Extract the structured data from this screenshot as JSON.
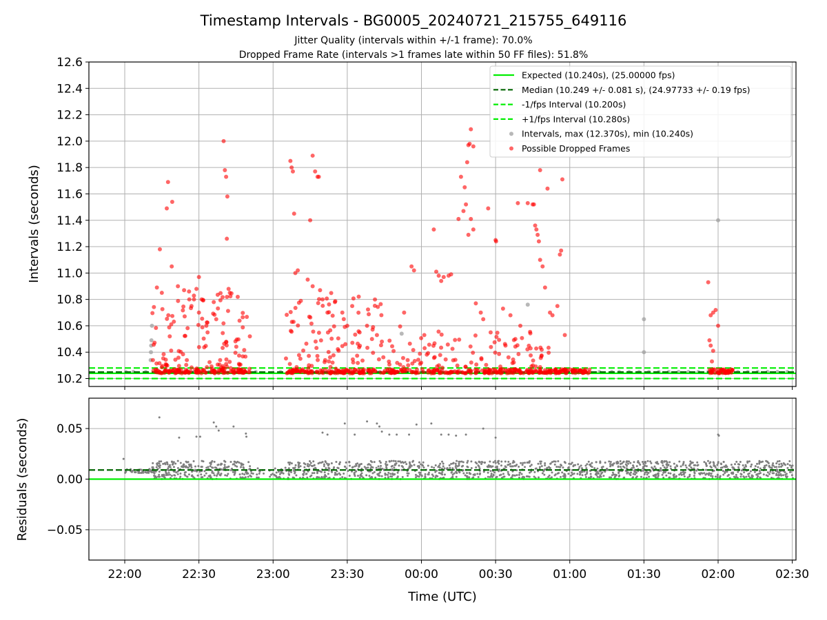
{
  "title": "Timestamp Intervals - BG0005_20240721_215755_649116",
  "subtitle_1": "Jitter Quality (intervals within +/-1 frame): 70.0%",
  "subtitle_2": "Dropped Frame Rate (intervals >1 frames late within 50 FF files): 51.8%",
  "colors": {
    "expected": "#00ee00",
    "median": "#006400",
    "bounds": "#00ee00",
    "normal_points": "#a0a0a0",
    "dropped_points": "#ff0000",
    "residual_points": "#7f7f7f",
    "grid": "#b0b0b0"
  },
  "chart_data": [
    {
      "type": "scatter",
      "id": "intervals",
      "ylabel": "Intervals (seconds)",
      "xlabel": "",
      "x_unit": "minutes since 22:00 UTC",
      "xlim": [
        -14.5,
        271.5
      ],
      "ylim": [
        10.14,
        12.6
      ],
      "y_ticks": [
        "10.2",
        "10.4",
        "10.6",
        "10.8",
        "11.0",
        "11.2",
        "11.4",
        "11.6",
        "11.8",
        "12.0",
        "12.2",
        "12.4",
        "12.6"
      ],
      "grid": "horizontal",
      "legend_position": "top-right",
      "legend": [
        {
          "label": "Expected (10.240s), (25.00000 fps)",
          "kind": "solid-line",
          "color": "#00ee00"
        },
        {
          "label": "Median (10.249 +/- 0.081 s), (24.97733 +/- 0.19 fps)",
          "kind": "dashed-line",
          "color": "#006400"
        },
        {
          "label": "-1/fps Interval (10.200s)",
          "kind": "dashed-line",
          "color": "#00ee00"
        },
        {
          "label": "+1/fps Interval (10.280s)",
          "kind": "dashed-line",
          "color": "#00ee00"
        },
        {
          "label": "Intervals, max (12.370s), min (10.240s)",
          "kind": "dot",
          "color": "#a0a0a0"
        },
        {
          "label": "Possible Dropped Frames",
          "kind": "dot",
          "color": "#ff0000"
        }
      ],
      "reference_lines": {
        "expected": 10.24,
        "median": 10.249,
        "lower": 10.2,
        "upper": 10.28
      },
      "normal_points": [
        [
          0.5,
          10.25
        ],
        [
          3.5,
          10.25
        ],
        [
          8.5,
          10.25
        ],
        [
          10.5,
          10.34
        ],
        [
          10.6,
          10.4
        ],
        [
          10.7,
          10.45
        ],
        [
          10.8,
          10.49
        ],
        [
          11,
          10.6
        ],
        [
          17,
          10.25
        ],
        [
          22,
          10.25
        ],
        [
          28,
          10.25
        ],
        [
          34,
          10.25
        ],
        [
          40,
          10.25
        ],
        [
          47,
          10.25
        ],
        [
          53,
          10.25
        ],
        [
          63,
          10.25
        ],
        [
          70,
          10.25
        ],
        [
          75,
          10.25
        ],
        [
          80,
          10.25
        ],
        [
          85,
          10.25
        ],
        [
          90,
          10.25
        ],
        [
          95,
          10.25
        ],
        [
          100,
          10.25
        ],
        [
          103,
          10.25
        ],
        [
          107,
          10.25
        ],
        [
          110,
          10.25
        ],
        [
          112,
          10.54
        ],
        [
          120,
          10.25
        ],
        [
          128,
          10.25
        ],
        [
          133,
          10.25
        ],
        [
          140,
          10.25
        ],
        [
          148,
          10.25
        ],
        [
          156,
          10.25
        ],
        [
          163,
          10.25
        ],
        [
          170,
          10.25
        ],
        [
          178,
          10.25
        ],
        [
          186,
          10.25
        ],
        [
          192,
          10.25
        ],
        [
          197,
          10.25
        ],
        [
          200,
          10.25
        ],
        [
          204,
          10.25
        ],
        [
          208,
          10.25
        ],
        [
          212,
          10.25
        ],
        [
          216,
          10.25
        ],
        [
          220,
          10.25
        ],
        [
          224,
          10.25
        ],
        [
          228,
          10.25
        ],
        [
          232,
          10.25
        ],
        [
          236,
          10.25
        ],
        [
          240,
          10.25
        ],
        [
          244,
          10.25
        ],
        [
          248,
          10.25
        ],
        [
          252,
          10.25
        ],
        [
          256,
          10.25
        ],
        [
          260,
          10.25
        ],
        [
          264,
          10.25
        ],
        [
          268,
          10.25
        ],
        [
          163,
          10.76
        ],
        [
          210,
          10.65
        ],
        [
          210,
          10.4
        ],
        [
          240,
          11.4
        ]
      ],
      "dropped_points": [
        [
          13,
          10.89
        ],
        [
          14.2,
          11.18
        ],
        [
          15,
          10.85
        ],
        [
          17,
          11.49
        ],
        [
          17.5,
          11.69
        ],
        [
          19.2,
          11.54
        ],
        [
          19,
          11.05
        ],
        [
          21.5,
          10.9
        ],
        [
          24,
          10.87
        ],
        [
          26,
          10.86
        ],
        [
          28,
          10.8
        ],
        [
          29,
          10.88
        ],
        [
          30,
          10.97
        ],
        [
          33,
          10.6
        ],
        [
          36,
          10.78
        ],
        [
          40,
          12.0
        ],
        [
          40.5,
          11.78
        ],
        [
          41,
          11.73
        ],
        [
          41.5,
          11.58
        ],
        [
          41.3,
          11.26
        ],
        [
          42,
          10.88
        ],
        [
          42.5,
          10.85
        ],
        [
          30,
          10.7
        ],
        [
          27,
          10.75
        ],
        [
          37,
          10.65
        ],
        [
          33.5,
          10.55
        ],
        [
          67,
          11.85
        ],
        [
          67.5,
          11.8
        ],
        [
          68,
          11.77
        ],
        [
          68.5,
          11.45
        ],
        [
          70,
          11.02
        ],
        [
          75,
          11.4
        ],
        [
          76,
          11.89
        ],
        [
          77,
          11.77
        ],
        [
          78,
          11.73
        ],
        [
          78.5,
          11.73
        ],
        [
          69,
          11.0
        ],
        [
          74,
          10.95
        ],
        [
          76,
          10.9
        ],
        [
          79,
          10.87
        ],
        [
          80,
          10.8
        ],
        [
          82,
          10.7
        ],
        [
          85,
          10.78
        ],
        [
          88,
          10.7
        ],
        [
          90,
          10.6
        ],
        [
          92,
          10.75
        ],
        [
          95,
          10.55
        ],
        [
          98,
          10.6
        ],
        [
          100,
          10.5
        ],
        [
          104,
          10.48
        ],
        [
          102,
          10.53
        ],
        [
          116,
          11.05
        ],
        [
          117,
          11.02
        ],
        [
          113,
          10.7
        ],
        [
          125,
          11.33
        ],
        [
          126,
          11.01
        ],
        [
          127,
          10.98
        ],
        [
          128,
          10.94
        ],
        [
          129,
          10.97
        ],
        [
          131,
          10.98
        ],
        [
          132,
          10.99
        ],
        [
          135,
          11.41
        ],
        [
          136,
          11.73
        ],
        [
          137,
          11.47
        ],
        [
          137.5,
          11.65
        ],
        [
          138,
          11.52
        ],
        [
          138.5,
          11.84
        ],
        [
          139,
          11.97
        ],
        [
          139.5,
          11.98
        ],
        [
          140,
          12.09
        ],
        [
          141,
          11.96
        ],
        [
          140,
          11.41
        ],
        [
          141,
          11.33
        ],
        [
          139,
          11.29
        ],
        [
          142,
          10.77
        ],
        [
          144,
          10.7
        ],
        [
          147,
          11.49
        ],
        [
          150,
          11.25
        ],
        [
          150.2,
          11.24
        ],
        [
          153,
          10.73
        ],
        [
          156,
          10.68
        ],
        [
          159,
          11.53
        ],
        [
          163,
          11.53
        ],
        [
          165,
          11.52
        ],
        [
          165.5,
          11.52
        ],
        [
          166,
          11.36
        ],
        [
          166.5,
          11.33
        ],
        [
          167,
          11.29
        ],
        [
          167.5,
          11.24
        ],
        [
          168,
          11.78
        ],
        [
          169,
          11.05
        ],
        [
          168,
          11.1
        ],
        [
          170,
          10.89
        ],
        [
          171,
          11.64
        ],
        [
          172,
          10.7
        ],
        [
          173,
          10.68
        ],
        [
          176,
          11.14
        ],
        [
          176.5,
          11.17
        ],
        [
          177,
          11.71
        ],
        [
          178,
          10.53
        ],
        [
          175,
          10.75
        ],
        [
          160,
          10.6
        ],
        [
          145,
          10.65
        ],
        [
          148,
          10.55
        ],
        [
          154,
          10.45
        ],
        [
          158,
          10.5
        ],
        [
          236,
          10.93
        ],
        [
          237,
          10.68
        ],
        [
          238,
          10.7
        ],
        [
          239,
          10.72
        ],
        [
          240,
          10.6
        ],
        [
          236.5,
          10.49
        ],
        [
          237,
          10.45
        ],
        [
          238,
          10.41
        ],
        [
          237.5,
          10.33
        ]
      ],
      "dropped_clusters": [
        {
          "x_range": [
            11,
            51
          ],
          "y_range": [
            10.24,
            10.85
          ],
          "count": 230,
          "low_band": 0.4
        },
        {
          "x_range": [
            65,
            105
          ],
          "y_range": [
            10.24,
            10.85
          ],
          "count": 200,
          "low_band": 0.4
        },
        {
          "x_range": [
            105,
            140
          ],
          "y_range": [
            10.24,
            10.6
          ],
          "count": 130,
          "low_band": 0.55
        },
        {
          "x_range": [
            140,
            175
          ],
          "y_range": [
            10.24,
            10.6
          ],
          "count": 150,
          "low_band": 0.5
        },
        {
          "x_range": [
            174,
            188
          ],
          "y_range": [
            10.24,
            10.3
          ],
          "count": 60,
          "low_band": 1.0
        },
        {
          "x_range": [
            236,
            246
          ],
          "y_range": [
            10.24,
            10.27
          ],
          "count": 45,
          "low_band": 1.0
        }
      ]
    },
    {
      "type": "scatter",
      "id": "residuals",
      "ylabel": "Residuals (seconds)",
      "xlabel": "Time (UTC)",
      "x_unit": "minutes since 22:00 UTC",
      "xlim": [
        -14.5,
        271.5
      ],
      "ylim": [
        -0.08,
        0.08
      ],
      "y_ticks": [
        {
          "v": 0.05,
          "label": "0.05"
        },
        {
          "v": 0.0,
          "label": "0.00"
        },
        {
          "v": -0.05,
          "label": "−0.05"
        }
      ],
      "x_ticks": [
        {
          "v": 0,
          "label": "22:00"
        },
        {
          "v": 30,
          "label": "22:30"
        },
        {
          "v": 60,
          "label": "23:00"
        },
        {
          "v": 90,
          "label": "23:30"
        },
        {
          "v": 120,
          "label": "00:00"
        },
        {
          "v": 150,
          "label": "00:30"
        },
        {
          "v": 180,
          "label": "01:00"
        },
        {
          "v": 210,
          "label": "01:30"
        },
        {
          "v": 240,
          "label": "02:00"
        },
        {
          "v": 270,
          "label": "02:30"
        }
      ],
      "grid": "both",
      "reference_lines": {
        "zero": 0.0,
        "median": 0.009
      },
      "outlier_points": [
        [
          -0.5,
          0.02
        ],
        [
          14,
          0.061
        ],
        [
          22,
          0.041
        ],
        [
          29,
          0.042
        ],
        [
          30.5,
          0.042
        ],
        [
          36,
          0.056
        ],
        [
          37,
          0.052
        ],
        [
          38,
          0.048
        ],
        [
          44,
          0.052
        ],
        [
          49,
          0.045
        ],
        [
          49.2,
          0.042
        ],
        [
          80,
          0.046
        ],
        [
          82,
          0.044
        ],
        [
          89,
          0.055
        ],
        [
          93,
          0.044
        ],
        [
          98,
          0.057
        ],
        [
          102,
          0.055
        ],
        [
          103,
          0.052
        ],
        [
          104,
          0.047
        ],
        [
          107,
          0.044
        ],
        [
          110,
          0.044
        ],
        [
          115,
          0.044
        ],
        [
          118,
          0.054
        ],
        [
          124,
          0.055
        ],
        [
          128,
          0.044
        ],
        [
          131,
          0.044
        ],
        [
          134,
          0.043
        ],
        [
          138,
          0.044
        ],
        [
          145,
          0.05
        ],
        [
          150,
          0.041
        ],
        [
          240,
          0.044
        ],
        [
          240.3,
          0.043
        ]
      ],
      "residual_bands": [
        {
          "x_range": [
            -0.5,
            11
          ],
          "y_range": [
            0.006,
            0.01
          ],
          "count": 45
        },
        {
          "x_range": [
            11,
            51
          ],
          "y_range": [
            0.0,
            0.018
          ],
          "count": 260
        },
        {
          "x_range": [
            51,
            65
          ],
          "y_range": [
            0.0,
            0.012
          ],
          "count": 40
        },
        {
          "x_range": [
            65,
            105
          ],
          "y_range": [
            0.0,
            0.018
          ],
          "count": 230
        },
        {
          "x_range": [
            105,
            190
          ],
          "y_range": [
            0.0,
            0.018
          ],
          "count": 460
        },
        {
          "x_range": [
            190,
            271
          ],
          "y_range": [
            0.0,
            0.018
          ],
          "count": 520
        }
      ]
    }
  ]
}
